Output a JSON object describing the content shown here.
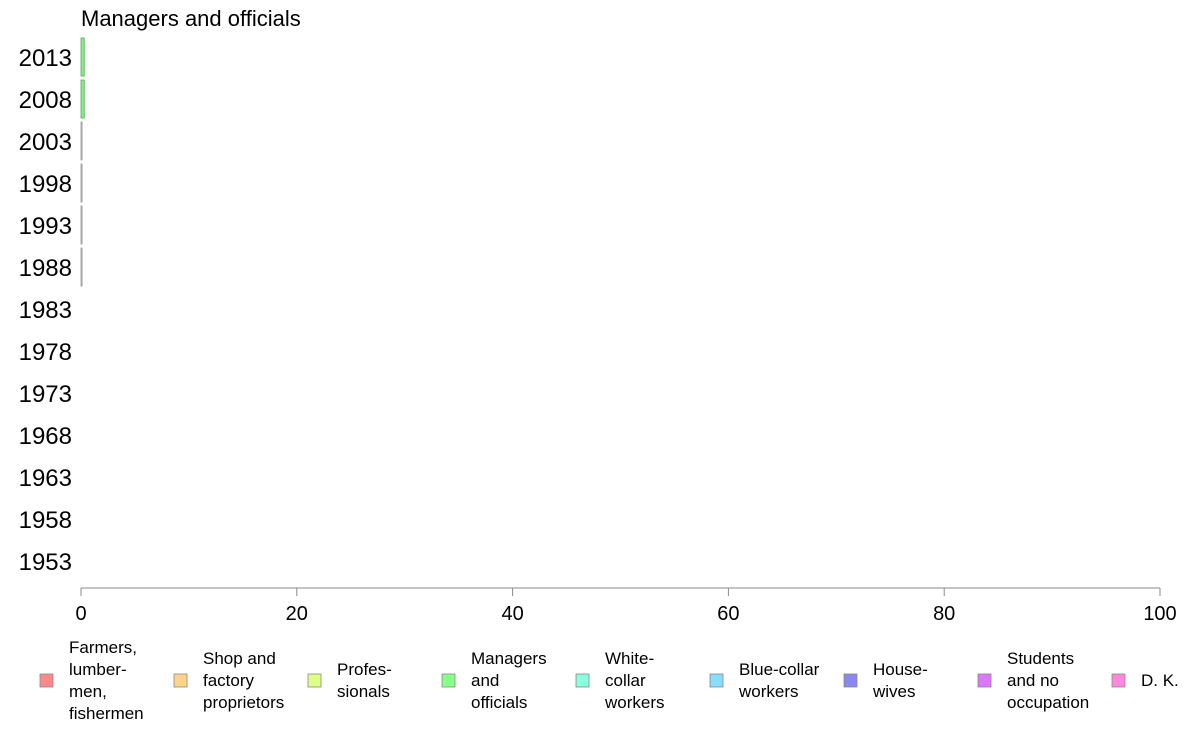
{
  "chart_data": {
    "type": "bar",
    "orientation": "horizontal",
    "title": "Managers and officials",
    "xlabel": "",
    "ylabel": "",
    "xlim": [
      0,
      100
    ],
    "x_ticks": [
      "0",
      "20",
      "40",
      "60",
      "80",
      "100"
    ],
    "categories": [
      "2013",
      "2008",
      "2003",
      "1998",
      "1993",
      "1988",
      "1983",
      "1978",
      "1973",
      "1968",
      "1963",
      "1958",
      "1953"
    ],
    "series": [
      {
        "name": "Managers and officials",
        "color": "#88ee88",
        "values": [
          0.3,
          0.3,
          0.1,
          0.1,
          0.1,
          0.1,
          null,
          null,
          null,
          null,
          null,
          null,
          null
        ]
      }
    ],
    "grid": false,
    "legend": {
      "placement": "bottom",
      "entries": [
        {
          "label": [
            "Farmers,",
            "lumber-",
            "men,",
            "fishermen"
          ],
          "color": "#ff8888"
        },
        {
          "label": [
            "Shop and",
            "factory",
            "proprietors"
          ],
          "color": "#ffd488"
        },
        {
          "label": [
            "Profes-",
            "sionals"
          ],
          "color": "#ddff88"
        },
        {
          "label": [
            "Managers",
            "and",
            "officials"
          ],
          "color": "#88ff88"
        },
        {
          "label": [
            "White-",
            "collar",
            "workers"
          ],
          "color": "#88ffdd"
        },
        {
          "label": [
            "Blue-collar",
            "workers"
          ],
          "color": "#88ddff"
        },
        {
          "label": [
            "House-",
            "wives"
          ],
          "color": "#8888ee"
        },
        {
          "label": [
            "Students",
            "and no",
            "occupation"
          ],
          "color": "#dd77ff"
        },
        {
          "label": [
            "D. K."
          ],
          "color": "#ff88dd"
        }
      ]
    }
  }
}
